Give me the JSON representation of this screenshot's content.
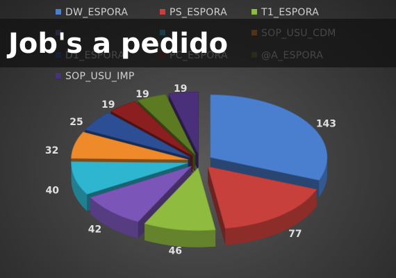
{
  "chart_data": {
    "type": "pie",
    "title": "Job's a pedido",
    "style": "3d-exploded",
    "legend_position": "top",
    "categories": [
      "DW_ESPORA",
      "PS_ESPORA",
      "T1_ESPORA",
      "SOP_USU_CDM",
      "D1_ESPORA",
      "PC_ESPORA",
      "@A_ESPORA",
      "SOP_USU_IMP"
    ],
    "slices": [
      {
        "value": 143,
        "color": "#4a7fd0"
      },
      {
        "value": 77,
        "color": "#c8403c"
      },
      {
        "value": 46,
        "color": "#8fbb3f"
      },
      {
        "value": 42,
        "color": "#7b56b8"
      },
      {
        "value": 40,
        "color": "#2eb5cf"
      },
      {
        "value": 32,
        "color": "#ef8a2a"
      },
      {
        "value": 25,
        "color": "#2b4e94"
      },
      {
        "value": 19,
        "color": "#8b1e1e"
      },
      {
        "value": 19,
        "color": "#5b7a22"
      },
      {
        "value": 19,
        "color": "#4a2f7a"
      }
    ],
    "legend": [
      {
        "label": "DW_ESPORA",
        "color": "#4a7fd0"
      },
      {
        "label": "PS_ESPORA",
        "color": "#c8403c"
      },
      {
        "label": "T1_ESPORA",
        "color": "#8fbb3f"
      },
      {
        "label": "",
        "color": "#7b56b8"
      },
      {
        "label": "",
        "color": "#2eb5cf"
      },
      {
        "label": "SOP_USU_CDM",
        "color": "#ef8a2a"
      },
      {
        "label": "D1_ESPORA",
        "color": "#2b4e94"
      },
      {
        "label": "PC_ESPORA",
        "color": "#8b1e1e"
      },
      {
        "label": "@A_ESPORA",
        "color": "#5b7a22"
      },
      {
        "label": "SOP_USU_IMP",
        "color": "#4a2f7a"
      }
    ]
  }
}
